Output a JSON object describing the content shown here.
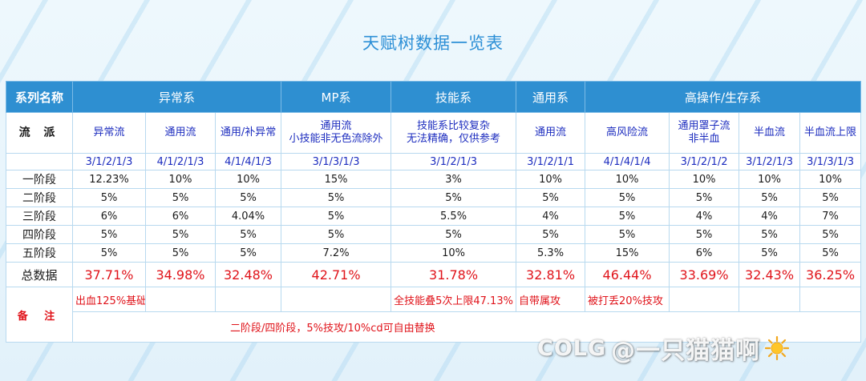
{
  "title": "天赋树数据一览表",
  "header": {
    "series_name": "系列名称",
    "groups": [
      "异常系",
      "MP系",
      "技能系",
      "通用系",
      "高操作/生存系"
    ]
  },
  "school": {
    "label": "流  派",
    "names": [
      "异常流",
      "通用流",
      "通用/补异常",
      "通用流\n小技能非无色流除外",
      "技能系比较复杂\n无法精确，仅供参考",
      "通用流",
      "高风险流",
      "通用罩子流\n非半血",
      "半血流",
      "半血流上限"
    ]
  },
  "codes": [
    "3/1/2/1/3",
    "4/1/2/1/3",
    "4/1/4/1/3",
    "3/1/3/1/3",
    "3/1/2/1/3",
    "3/1/2/1/1",
    "4/1/4/1/4",
    "3/1/2/1/2",
    "3/1/2/1/3",
    "3/1/3/1/3"
  ],
  "stages": [
    {
      "label": "一阶段",
      "values": [
        "12.23%",
        "10%",
        "10%",
        "15%",
        "3%",
        "10%",
        "10%",
        "10%",
        "10%",
        "10%"
      ]
    },
    {
      "label": "二阶段",
      "values": [
        "5%",
        "5%",
        "5%",
        "5%",
        "5%",
        "5%",
        "5%",
        "5%",
        "5%",
        "5%"
      ]
    },
    {
      "label": "三阶段",
      "values": [
        "6%",
        "6%",
        "4.04%",
        "5%",
        "5.5%",
        "4%",
        "5%",
        "4%",
        "4%",
        "7%"
      ]
    },
    {
      "label": "四阶段",
      "values": [
        "5%",
        "5%",
        "5%",
        "5%",
        "5%",
        "5%",
        "5%",
        "5%",
        "5%",
        "5%"
      ]
    },
    {
      "label": "五阶段",
      "values": [
        "5%",
        "5%",
        "5%",
        "7.2%",
        "10%",
        "5.3%",
        "15%",
        "6%",
        "5%",
        "5%"
      ]
    }
  ],
  "total": {
    "label": "总数据",
    "values": [
      "37.71%",
      "34.98%",
      "32.48%",
      "42.71%",
      "31.78%",
      "32.81%",
      "46.44%",
      "33.69%",
      "32.43%",
      "36.25%"
    ]
  },
  "notes": {
    "label": "备  注",
    "cells": [
      "出血125%基础",
      "",
      "",
      "",
      "全技能叠5次上限47.13%",
      "自带属攻",
      "被打丢20%技攻",
      "",
      "",
      ""
    ],
    "bottom": "二阶段/四阶段，5%技攻/10%cd可自由替换"
  },
  "watermark": {
    "logo": "COLG",
    "text": "@一只猫猫啊",
    "icon": "sun-icon"
  }
}
